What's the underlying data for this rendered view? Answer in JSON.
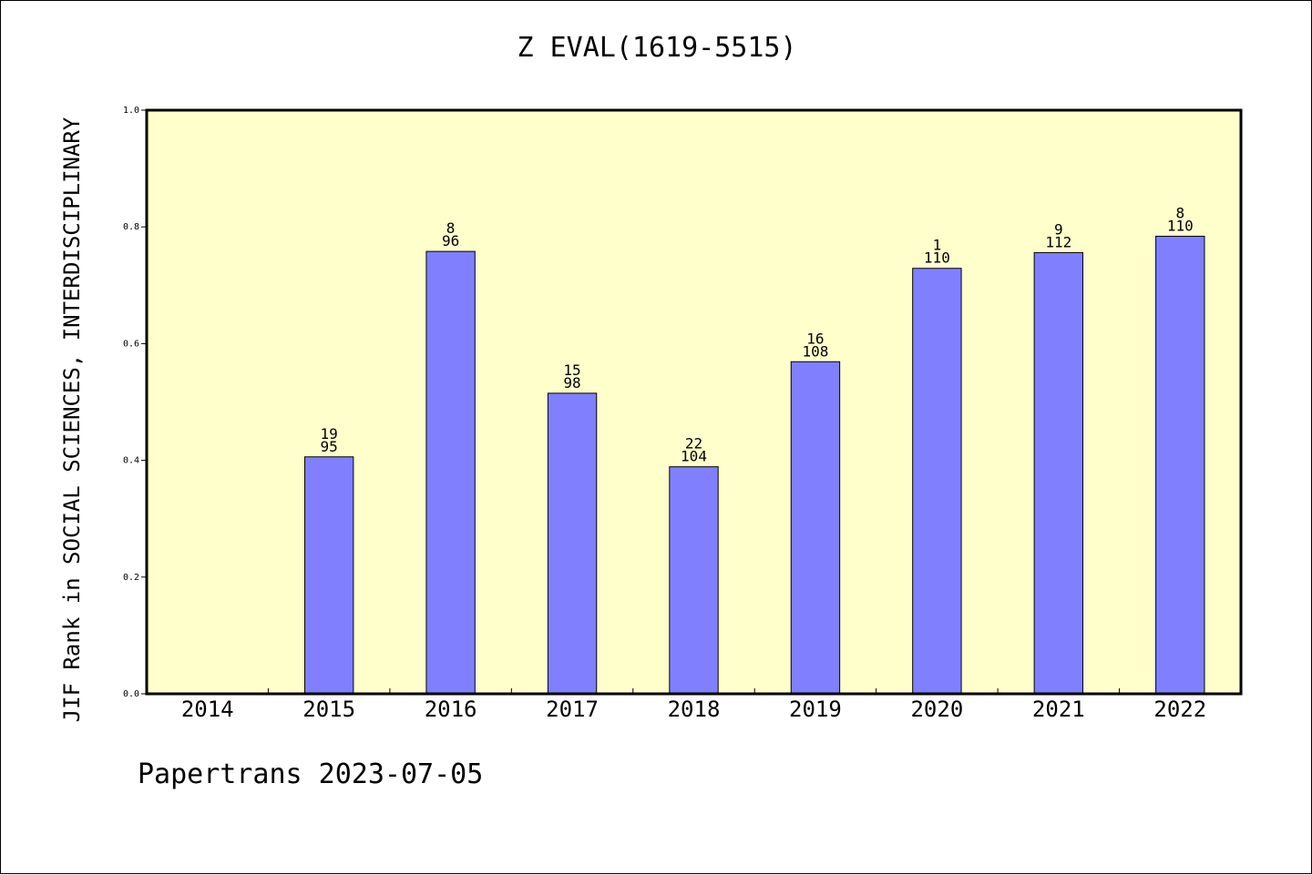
{
  "title": "Z EVAL(1619-5515)",
  "footer": "Papertrans 2023-07-05",
  "colors": {
    "plot_background": "#ffffcc",
    "bar_fill": "#8080ff",
    "axis": "#000000"
  },
  "chart_data": {
    "type": "bar",
    "title": "Z EVAL(1619-5515)",
    "xlabel": "",
    "ylabel": "JIF Rank in SOCIAL SCIENCES, INTERDISCIPLINARY",
    "ylim": [
      0,
      1.0
    ],
    "yticks": [
      "0.0",
      "0.2",
      "0.4",
      "0.6",
      "0.8",
      "1.0"
    ],
    "grid": false,
    "categories": [
      "2014",
      "2015",
      "2016",
      "2017",
      "2018",
      "2019",
      "2020",
      "2021",
      "2022"
    ],
    "values": [
      null,
      0.406,
      0.758,
      0.515,
      0.389,
      0.569,
      0.729,
      0.756,
      0.784
    ],
    "labels": [
      null,
      {
        "rank": "19",
        "total": "95"
      },
      {
        "rank": "8",
        "total": "96"
      },
      {
        "rank": "15",
        "total": "98"
      },
      {
        "rank": "22",
        "total": "104"
      },
      {
        "rank": "16",
        "total": "108"
      },
      {
        "rank": "1",
        "total": "110"
      },
      {
        "rank": "9",
        "total": "112"
      },
      {
        "rank": "8",
        "total": "110"
      }
    ]
  }
}
